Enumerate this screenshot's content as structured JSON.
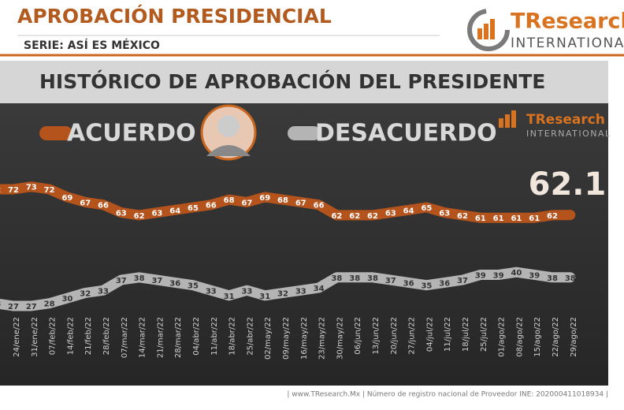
{
  "header": {
    "title": "APROBACIÓN PRESIDENCIAL",
    "subtitle": "SERIE: ASÍ ES MÉXICO",
    "logo_name": "TResearch",
    "logo_sub": "INTERNATIONAL"
  },
  "footer": "| www.TResearch.Mx | Número de registro nacional de Proveedor INE: 202000411018934 |",
  "chart_data": {
    "type": "line",
    "title": "HISTÓRICO DE APROBACIÓN DEL PRESIDENTE",
    "categories": [
      null,
      "24/ene/22",
      "31/ene/22",
      "07/feb/22",
      "14/feb/22",
      "21/feb/22",
      "28/feb/22",
      "07/mar/22",
      "14/mar/22",
      "21/mar/22",
      "28/mar/22",
      "04/abr/22",
      "11/abr/22",
      "18/abr/22",
      "25/abr/22",
      "02/may/22",
      "09/may/22",
      "16/may/22",
      "23/may/22",
      "30/may/22",
      "06/jun/22",
      "13/jun/22",
      "20/jun/22",
      "27/jun/22",
      "04/jul/22",
      "11/jul/22",
      "18/jul/22",
      "25/jul/22",
      "01/ago/22",
      "08/ago/22",
      "15/ago/22",
      "22/ago/22",
      "29/ago/22"
    ],
    "series": [
      {
        "name": "ACUERDO",
        "color": "#b5531c",
        "values": [
          72,
          72,
          73,
          72,
          69,
          67,
          66,
          63,
          62,
          63,
          64,
          65,
          66,
          68,
          67,
          69,
          68,
          67,
          66,
          62,
          62,
          62,
          63,
          64,
          65,
          63,
          62,
          61,
          61,
          61,
          61,
          62,
          62.1
        ]
      },
      {
        "name": "DESACUERDO",
        "color": "#b4b4b4",
        "values": [
          28,
          27,
          27,
          28,
          30,
          32,
          33,
          37,
          38,
          37,
          36,
          35,
          33,
          31,
          33,
          31,
          32,
          33,
          34,
          38,
          38,
          38,
          37,
          36,
          35,
          36,
          37,
          39,
          39,
          40,
          39,
          38,
          38
        ]
      }
    ],
    "ylim": [
      20,
      80
    ]
  }
}
